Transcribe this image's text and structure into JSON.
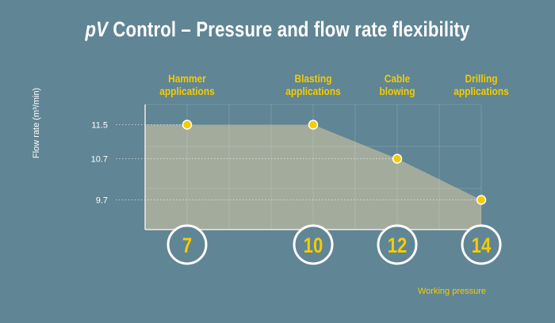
{
  "title_italic": "pV",
  "title_rest": " Control – Pressure and flow rate flexibility",
  "chart_data": {
    "type": "area",
    "title": "pV Control – Pressure and flow rate flexibility",
    "xlabel": "Working pressure",
    "ylabel": "Flow rate (m³/min)",
    "xlim": [
      6,
      14
    ],
    "y_ticks": [
      11.5,
      10.7,
      9.7
    ],
    "x_ticks": [
      7,
      10,
      12,
      14
    ],
    "points": [
      {
        "x": 7,
        "y": 11.5,
        "label": "Hammer applications"
      },
      {
        "x": 10,
        "y": 11.5,
        "label": "Blasting applications"
      },
      {
        "x": 12,
        "y": 10.7,
        "label": "Cable blowing"
      },
      {
        "x": 14,
        "y": 9.7,
        "label": "Drilling applications"
      }
    ],
    "area_start": {
      "x": 6,
      "y": 11.5
    },
    "grid": true,
    "colors": {
      "background": "#608594",
      "area": "#a3ab9d",
      "marker": "#f5cc00",
      "text_accent": "#f5cc00"
    }
  },
  "categories": [
    {
      "line1": "Hammer",
      "line2": "applications"
    },
    {
      "line1": "Blasting",
      "line2": "applications"
    },
    {
      "line1": "Cable",
      "line2": "blowing"
    },
    {
      "line1": "Drilling",
      "line2": "applications"
    }
  ]
}
